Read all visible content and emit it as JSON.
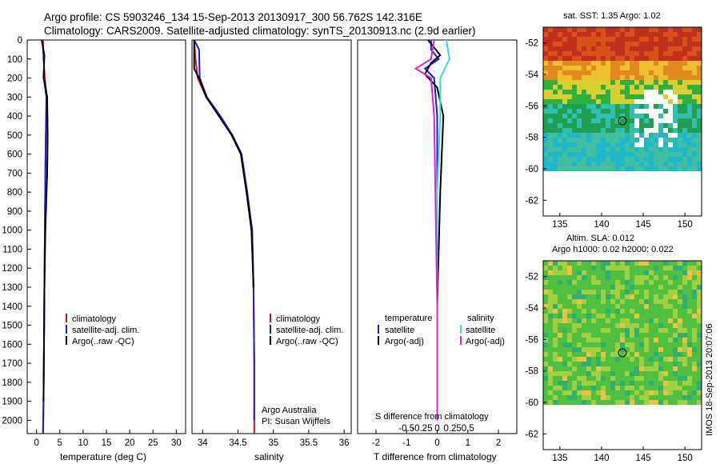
{
  "header": {
    "line1": "Argo profile: CS 5903246_134 15-Sep-2013 20130917_300 56.762S 142.316E",
    "line2": "Climatology: CARS2009. Satellite-adjusted climatology: synTS_20130913.nc (2.9d earlier)"
  },
  "colors": {
    "climatology": "#e01010",
    "satellite": "#1a1adc",
    "argo": "#000000",
    "satellite_sal": "#33dddd",
    "argo_sal": "#e020d0"
  },
  "depth_axis": {
    "ticks": [
      "0",
      "100",
      "200",
      "300",
      "400",
      "500",
      "600",
      "700",
      "800",
      "900",
      "1000",
      "1100",
      "1200",
      "1300",
      "1400",
      "1500",
      "1600",
      "1700",
      "1800",
      "1900",
      "2000"
    ]
  },
  "legend_main": [
    "climatology",
    "satellite-adj. clim.",
    "Argo(..raw -QC)"
  ],
  "credits": {
    "line1": "Argo Australia",
    "line2": "PI: Susan Wijffels"
  },
  "legend_diff": {
    "temp_title": "temperature",
    "sal_title": "salinity",
    "satellite": "satellite",
    "argo": "Argo(-adj)",
    "top_title": "S difference from climatology"
  },
  "map_top": {
    "title": "sat. SST: 1.35 Argo: 1.02",
    "xticks": [
      "135",
      "140",
      "145",
      "150"
    ],
    "yticks": [
      "-52",
      "-54",
      "-56",
      "-58",
      "-60",
      "-62"
    ]
  },
  "map_bottom": {
    "title1": "Altim. SLA: 0.012",
    "title2": "Argo h1000: 0.02 h2000: 0.022",
    "xticks": [
      "135",
      "140",
      "145",
      "150"
    ],
    "yticks": [
      "-52",
      "-54",
      "-56",
      "-58",
      "-60",
      "-62"
    ]
  },
  "side_stamp": "IMOS 18-Sep-2013 20:07:06",
  "chart_data": [
    {
      "type": "line",
      "xlabel": "temperature (deg C)",
      "xticks": [
        "0",
        "5",
        "10",
        "15",
        "20",
        "25",
        "30"
      ],
      "xlim": [
        -2,
        32
      ],
      "ylim": [
        2070,
        0
      ],
      "series": [
        {
          "name": "climatology",
          "x": [
            1.4,
            1.5,
            1.8,
            2.2,
            2.0,
            1.9,
            1.8,
            1.7,
            1.6,
            1.5,
            1.4
          ],
          "y": [
            0,
            100,
            200,
            300,
            500,
            700,
            1000,
            1300,
            1600,
            1900,
            2070
          ]
        },
        {
          "name": "satellite-adj. clim.",
          "x": [
            1.2,
            1.6,
            1.6,
            2.1,
            2.0,
            1.9,
            1.8,
            1.7,
            1.6,
            1.5,
            1.4
          ],
          "y": [
            0,
            100,
            200,
            300,
            500,
            700,
            1000,
            1300,
            1600,
            1900,
            2070
          ]
        },
        {
          "name": "Argo(..raw -QC)",
          "x": [
            1.1,
            1.7,
            1.5,
            2.3,
            2.4,
            2.3,
            1.9,
            1.7,
            1.6,
            1.5
          ],
          "y": [
            0,
            80,
            200,
            300,
            500,
            700,
            1000,
            1300,
            1600,
            1900
          ]
        }
      ]
    },
    {
      "type": "line",
      "xlabel": "salinity",
      "xticks": [
        "34",
        "34.5",
        "35",
        "35.5",
        "36"
      ],
      "xlim": [
        33.85,
        36.1
      ],
      "ylim": [
        2070,
        0
      ],
      "series": [
        {
          "name": "climatology",
          "x": [
            33.88,
            33.9,
            33.93,
            34.05,
            34.25,
            34.42,
            34.55,
            34.63,
            34.7,
            34.72,
            34.73,
            34.73
          ],
          "y": [
            0,
            100,
            200,
            300,
            400,
            500,
            600,
            800,
            1000,
            1300,
            1700,
            2070
          ]
        },
        {
          "name": "satellite-adj. clim.",
          "x": [
            33.88,
            33.95,
            33.96,
            34.06,
            34.25,
            34.42,
            34.55,
            34.63,
            34.7,
            34.72,
            34.73,
            34.73
          ],
          "y": [
            0,
            50,
            200,
            300,
            400,
            500,
            600,
            800,
            1000,
            1300,
            1700,
            2000
          ]
        },
        {
          "name": "Argo(..raw -QC)",
          "x": [
            33.88,
            33.88,
            33.95,
            34.05,
            34.23,
            34.41,
            34.54,
            34.62,
            34.69,
            34.72
          ],
          "y": [
            0,
            150,
            200,
            300,
            400,
            500,
            600,
            800,
            1000,
            1300
          ]
        }
      ]
    },
    {
      "type": "line",
      "xlabel": "T difference from climatology",
      "xticks_top": [
        "-0.5",
        "-0.25",
        "0",
        "0.25",
        "0.5"
      ],
      "xticks_bottom": [
        "-2",
        "-1",
        "0",
        "1",
        "2"
      ],
      "xlim": [
        -2.6,
        2.6
      ],
      "ylim": [
        2070,
        0
      ],
      "series": [
        {
          "name": "temperature satellite",
          "x": [
            -0.2,
            -0.2,
            0.05,
            -0.4,
            -0.1,
            0.0,
            0.0,
            0.0,
            0.0
          ],
          "y": [
            0,
            50,
            100,
            150,
            200,
            400,
            800,
            1400,
            2000
          ]
        },
        {
          "name": "temperature Argo(-adj)",
          "x": [
            -0.3,
            0.1,
            -0.2,
            -0.4,
            0.0,
            0.2,
            0.1,
            0.0,
            0.0
          ],
          "y": [
            0,
            80,
            120,
            180,
            250,
            400,
            800,
            1400,
            2000
          ]
        },
        {
          "name": "salinity satellite",
          "x": [
            0.3,
            0.4,
            0.1,
            0.1,
            0.0,
            0.0,
            0.0
          ],
          "y": [
            0,
            100,
            200,
            400,
            800,
            1400,
            2000
          ]
        },
        {
          "name": "salinity Argo(-adj)",
          "x": [
            -0.1,
            -0.2,
            -0.7,
            -0.2,
            -0.1,
            0.0,
            0.0
          ],
          "y": [
            0,
            100,
            150,
            200,
            400,
            1400,
            2000
          ]
        }
      ]
    }
  ]
}
